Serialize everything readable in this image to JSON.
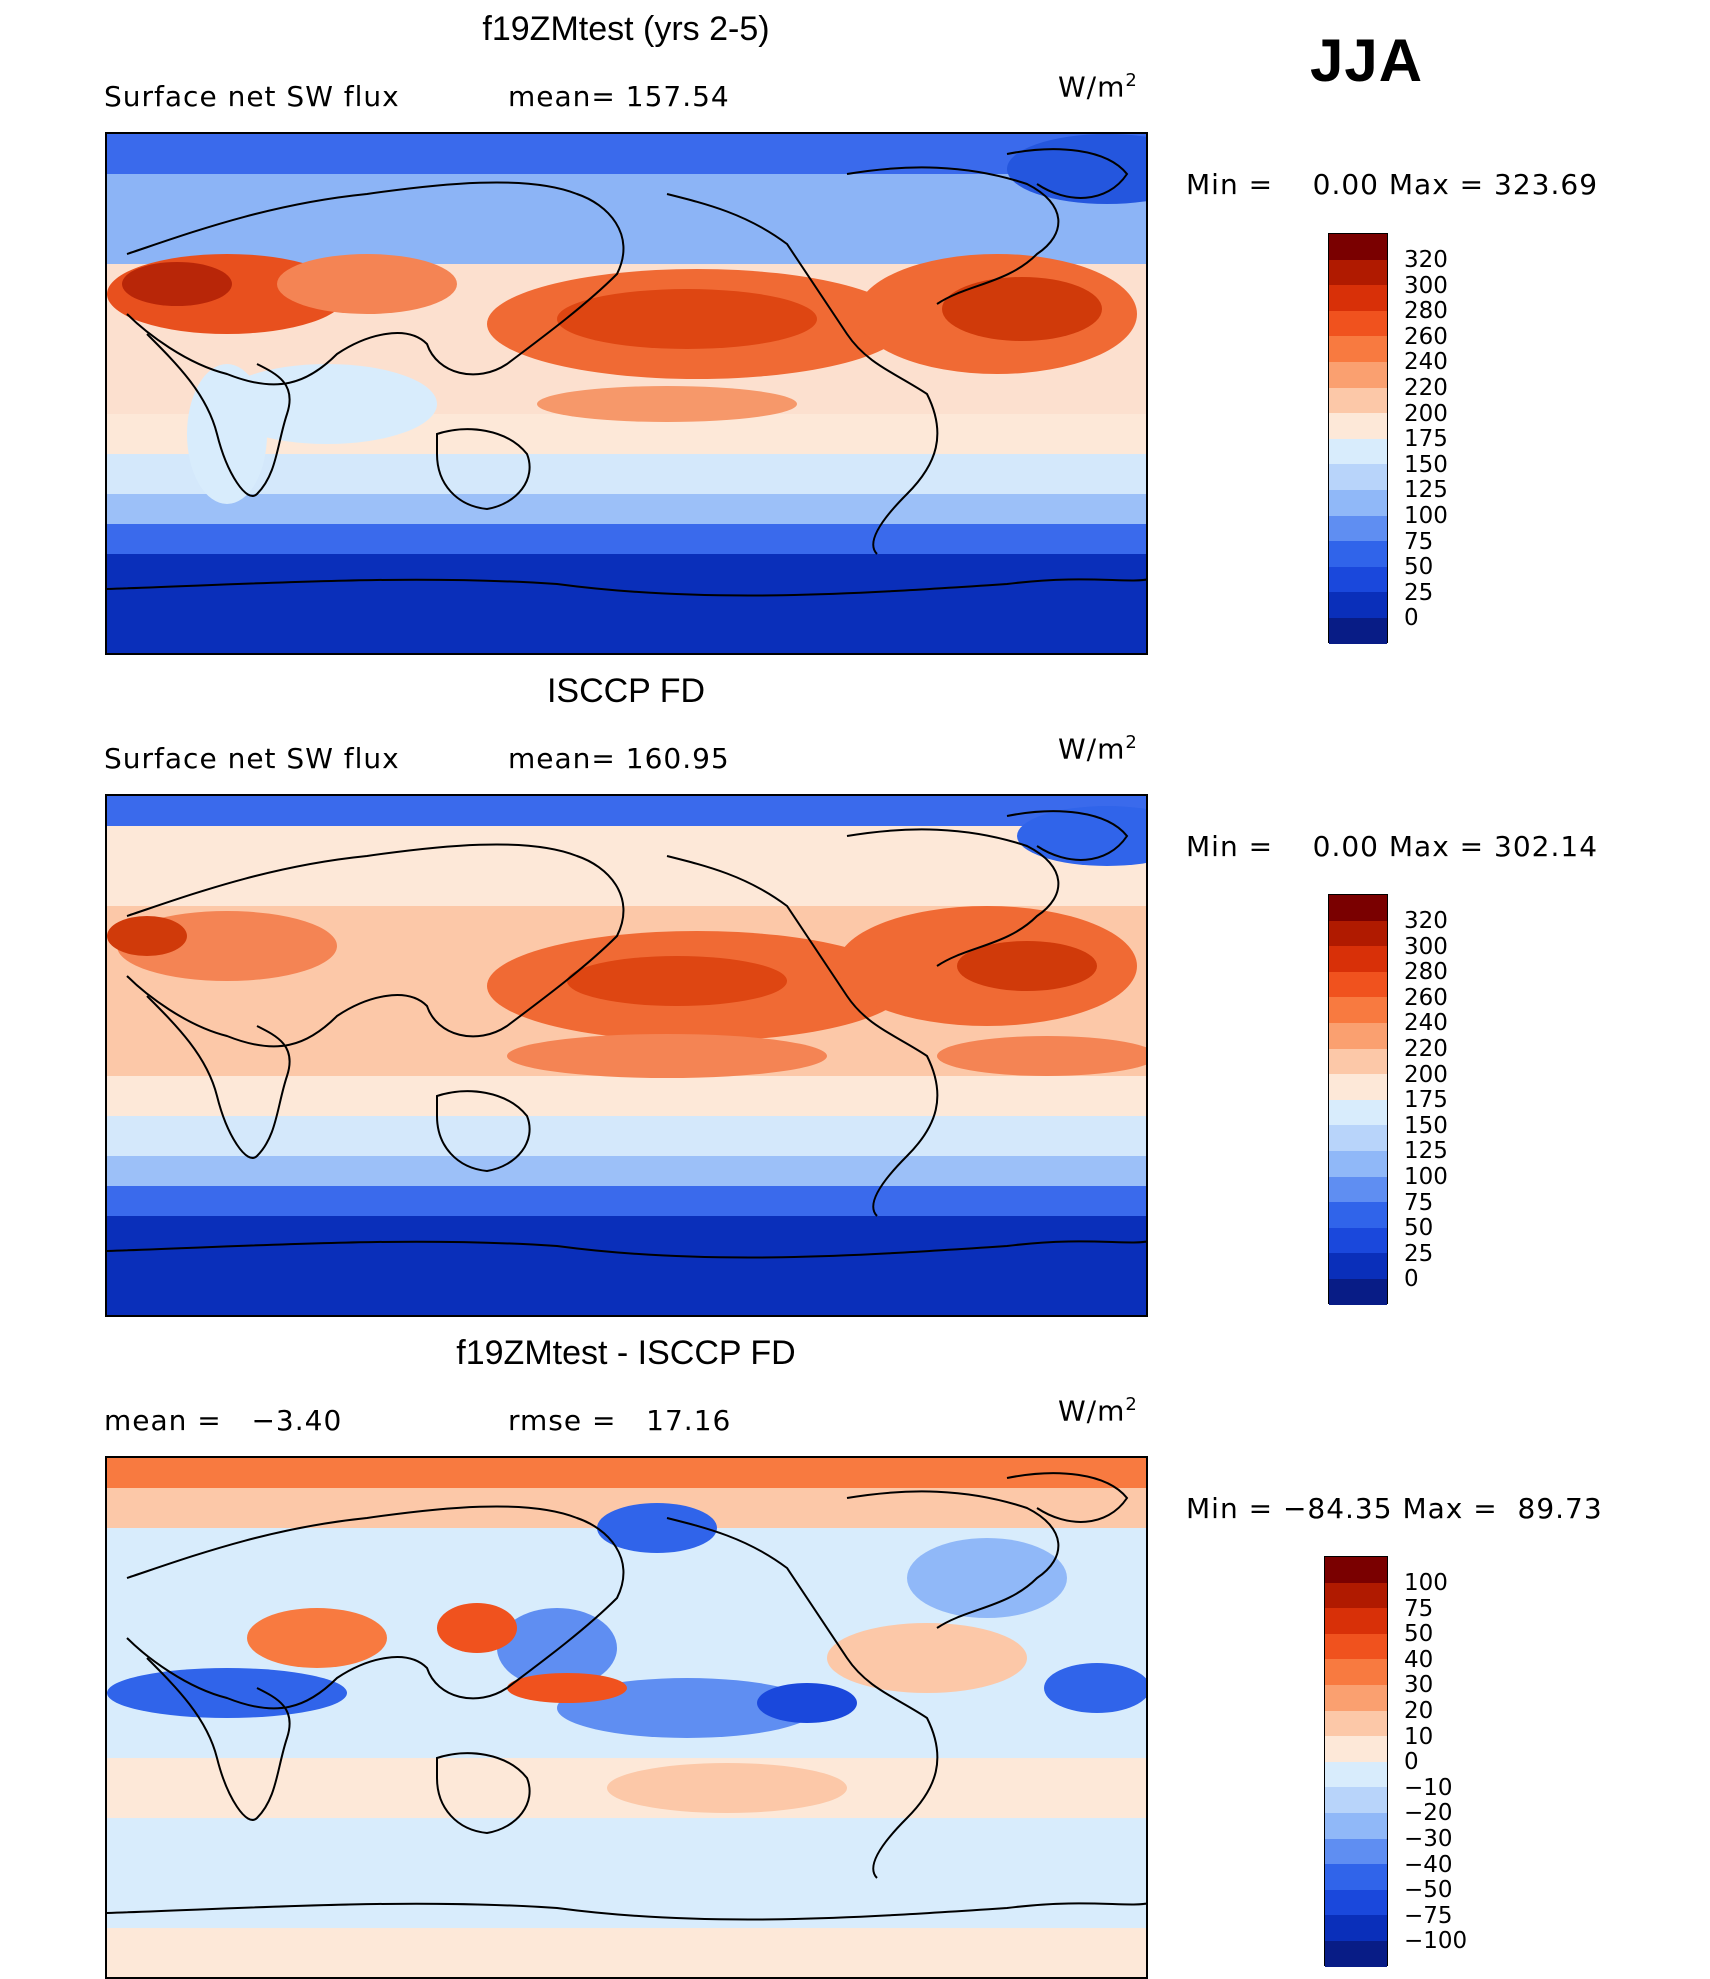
{
  "season": "JJA",
  "units_label": "W/m",
  "units_power": "2",
  "panels": [
    {
      "title": "f19ZMtest (yrs 2-5)",
      "subtitle_left": "Surface net SW flux",
      "subtitle_mid": "mean= 157.54",
      "minmax": "Min =    0.00 Max = 323.69",
      "colorbar_labels": [
        "320",
        "300",
        "280",
        "260",
        "240",
        "220",
        "200",
        "175",
        "150",
        "125",
        "100",
        "75",
        "50",
        "25",
        "0"
      ],
      "colorbar_colors": [
        "#7a0000",
        "#b01a00",
        "#d83008",
        "#f0521e",
        "#f87a40",
        "#faa070",
        "#fcc8a8",
        "#fde8d8",
        "#d8ecfc",
        "#b8d4fa",
        "#90b8f8",
        "#5f8ef2",
        "#3064ea",
        "#1a48dc",
        "#0a2fba",
        "#081c86"
      ]
    },
    {
      "title": "ISCCP FD",
      "subtitle_left": "Surface net SW flux",
      "subtitle_mid": "mean= 160.95",
      "minmax": "Min =    0.00 Max = 302.14",
      "colorbar_labels": [
        "320",
        "300",
        "280",
        "260",
        "240",
        "220",
        "200",
        "175",
        "150",
        "125",
        "100",
        "75",
        "50",
        "25",
        "0"
      ],
      "colorbar_colors": [
        "#7a0000",
        "#b01a00",
        "#d83008",
        "#f0521e",
        "#f87a40",
        "#faa070",
        "#fcc8a8",
        "#fde8d8",
        "#d8ecfc",
        "#b8d4fa",
        "#90b8f8",
        "#5f8ef2",
        "#3064ea",
        "#1a48dc",
        "#0a2fba",
        "#081c86"
      ]
    },
    {
      "title": "f19ZMtest - ISCCP FD",
      "subtitle_left": "mean =   −3.40",
      "subtitle_mid": "rmse =   17.16",
      "minmax": "Min = −84.35 Max =  89.73",
      "colorbar_labels": [
        "100",
        "75",
        "50",
        "40",
        "30",
        "20",
        "10",
        "0",
        "−10",
        "−20",
        "−30",
        "−40",
        "−50",
        "−75",
        "−100"
      ],
      "colorbar_colors": [
        "#7a0000",
        "#b01a00",
        "#d83008",
        "#f0521e",
        "#f87a40",
        "#faa070",
        "#fcc8a8",
        "#fde8d8",
        "#d8ecfc",
        "#b8d4fa",
        "#90b8f8",
        "#5f8ef2",
        "#3064ea",
        "#1a48dc",
        "#0a2fba",
        "#081c86"
      ]
    }
  ]
}
